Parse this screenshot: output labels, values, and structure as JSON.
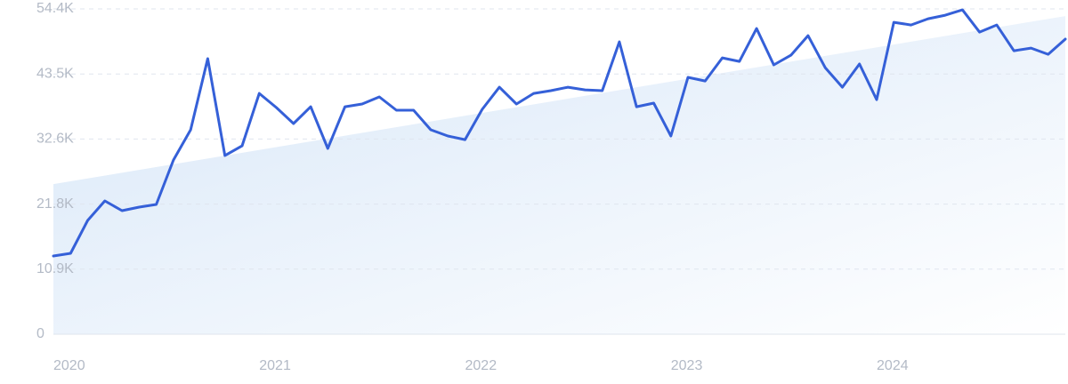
{
  "chart_data": {
    "type": "line",
    "categories": [
      "2020",
      null,
      null,
      null,
      null,
      null,
      null,
      null,
      null,
      null,
      null,
      null,
      "2021",
      null,
      null,
      null,
      null,
      null,
      null,
      null,
      null,
      null,
      null,
      null,
      "2022",
      null,
      null,
      null,
      null,
      null,
      null,
      null,
      null,
      null,
      null,
      null,
      "2023",
      null,
      null,
      null,
      null,
      null,
      null,
      null,
      null,
      null,
      null,
      null,
      "2024",
      null,
      null,
      null,
      null,
      null,
      null,
      null,
      null,
      null,
      null,
      null
    ],
    "values": [
      13080,
      13520,
      19020,
      22290,
      20660,
      21250,
      21700,
      29130,
      34180,
      46070,
      29870,
      31500,
      40270,
      37900,
      35220,
      38040,
      31060,
      38040,
      38490,
      39680,
      37450,
      37450,
      34180,
      33140,
      32540,
      37600,
      41310,
      38490,
      40270,
      40720,
      41310,
      40860,
      40720,
      48890,
      38040,
      38640,
      33140,
      42950,
      42350,
      46210,
      45620,
      51120,
      45030,
      46660,
      49930,
      44580,
      41310,
      45180,
      39230,
      52160,
      51710,
      52750,
      53350,
      54240,
      50520,
      51710,
      47400,
      47850,
      46810,
      49340
    ],
    "trend": [
      25100,
      53200
    ],
    "color": "#3560d8",
    "ylim": [
      0,
      54400
    ],
    "yticks": [
      0,
      {
        "value": 10880,
        "label": "10.9K"
      },
      {
        "value": 21760,
        "label": "21.8K"
      },
      {
        "value": 32640,
        "label": "32.6K"
      },
      {
        "value": 43520,
        "label": "43.5K"
      },
      {
        "value": 54400,
        "label": "54.4K"
      }
    ],
    "grid": true
  }
}
